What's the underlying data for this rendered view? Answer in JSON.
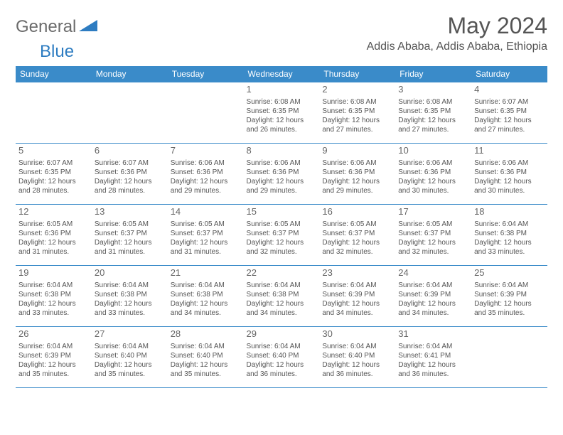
{
  "logo": {
    "part1": "General",
    "part2": "Blue",
    "accent_color": "#2d7cc1",
    "gray_color": "#6b6b6b"
  },
  "header": {
    "title": "May 2024",
    "location": "Addis Ababa, Addis Ababa, Ethiopia"
  },
  "calendar": {
    "header_bg": "#3a8bc9",
    "header_fg": "#ffffff",
    "border_color": "#3a8bc9",
    "text_color": "#555555",
    "day_headers": [
      "Sunday",
      "Monday",
      "Tuesday",
      "Wednesday",
      "Thursday",
      "Friday",
      "Saturday"
    ],
    "weeks": [
      [
        null,
        null,
        null,
        {
          "n": "1",
          "sr": "6:08 AM",
          "ss": "6:35 PM",
          "dl": "12 hours and 26 minutes."
        },
        {
          "n": "2",
          "sr": "6:08 AM",
          "ss": "6:35 PM",
          "dl": "12 hours and 27 minutes."
        },
        {
          "n": "3",
          "sr": "6:08 AM",
          "ss": "6:35 PM",
          "dl": "12 hours and 27 minutes."
        },
        {
          "n": "4",
          "sr": "6:07 AM",
          "ss": "6:35 PM",
          "dl": "12 hours and 27 minutes."
        }
      ],
      [
        {
          "n": "5",
          "sr": "6:07 AM",
          "ss": "6:35 PM",
          "dl": "12 hours and 28 minutes."
        },
        {
          "n": "6",
          "sr": "6:07 AM",
          "ss": "6:36 PM",
          "dl": "12 hours and 28 minutes."
        },
        {
          "n": "7",
          "sr": "6:06 AM",
          "ss": "6:36 PM",
          "dl": "12 hours and 29 minutes."
        },
        {
          "n": "8",
          "sr": "6:06 AM",
          "ss": "6:36 PM",
          "dl": "12 hours and 29 minutes."
        },
        {
          "n": "9",
          "sr": "6:06 AM",
          "ss": "6:36 PM",
          "dl": "12 hours and 29 minutes."
        },
        {
          "n": "10",
          "sr": "6:06 AM",
          "ss": "6:36 PM",
          "dl": "12 hours and 30 minutes."
        },
        {
          "n": "11",
          "sr": "6:06 AM",
          "ss": "6:36 PM",
          "dl": "12 hours and 30 minutes."
        }
      ],
      [
        {
          "n": "12",
          "sr": "6:05 AM",
          "ss": "6:36 PM",
          "dl": "12 hours and 31 minutes."
        },
        {
          "n": "13",
          "sr": "6:05 AM",
          "ss": "6:37 PM",
          "dl": "12 hours and 31 minutes."
        },
        {
          "n": "14",
          "sr": "6:05 AM",
          "ss": "6:37 PM",
          "dl": "12 hours and 31 minutes."
        },
        {
          "n": "15",
          "sr": "6:05 AM",
          "ss": "6:37 PM",
          "dl": "12 hours and 32 minutes."
        },
        {
          "n": "16",
          "sr": "6:05 AM",
          "ss": "6:37 PM",
          "dl": "12 hours and 32 minutes."
        },
        {
          "n": "17",
          "sr": "6:05 AM",
          "ss": "6:37 PM",
          "dl": "12 hours and 32 minutes."
        },
        {
          "n": "18",
          "sr": "6:04 AM",
          "ss": "6:38 PM",
          "dl": "12 hours and 33 minutes."
        }
      ],
      [
        {
          "n": "19",
          "sr": "6:04 AM",
          "ss": "6:38 PM",
          "dl": "12 hours and 33 minutes."
        },
        {
          "n": "20",
          "sr": "6:04 AM",
          "ss": "6:38 PM",
          "dl": "12 hours and 33 minutes."
        },
        {
          "n": "21",
          "sr": "6:04 AM",
          "ss": "6:38 PM",
          "dl": "12 hours and 34 minutes."
        },
        {
          "n": "22",
          "sr": "6:04 AM",
          "ss": "6:38 PM",
          "dl": "12 hours and 34 minutes."
        },
        {
          "n": "23",
          "sr": "6:04 AM",
          "ss": "6:39 PM",
          "dl": "12 hours and 34 minutes."
        },
        {
          "n": "24",
          "sr": "6:04 AM",
          "ss": "6:39 PM",
          "dl": "12 hours and 34 minutes."
        },
        {
          "n": "25",
          "sr": "6:04 AM",
          "ss": "6:39 PM",
          "dl": "12 hours and 35 minutes."
        }
      ],
      [
        {
          "n": "26",
          "sr": "6:04 AM",
          "ss": "6:39 PM",
          "dl": "12 hours and 35 minutes."
        },
        {
          "n": "27",
          "sr": "6:04 AM",
          "ss": "6:40 PM",
          "dl": "12 hours and 35 minutes."
        },
        {
          "n": "28",
          "sr": "6:04 AM",
          "ss": "6:40 PM",
          "dl": "12 hours and 35 minutes."
        },
        {
          "n": "29",
          "sr": "6:04 AM",
          "ss": "6:40 PM",
          "dl": "12 hours and 36 minutes."
        },
        {
          "n": "30",
          "sr": "6:04 AM",
          "ss": "6:40 PM",
          "dl": "12 hours and 36 minutes."
        },
        {
          "n": "31",
          "sr": "6:04 AM",
          "ss": "6:41 PM",
          "dl": "12 hours and 36 minutes."
        },
        null
      ]
    ],
    "labels": {
      "sunrise": "Sunrise:",
      "sunset": "Sunset:",
      "daylight": "Daylight:"
    }
  }
}
